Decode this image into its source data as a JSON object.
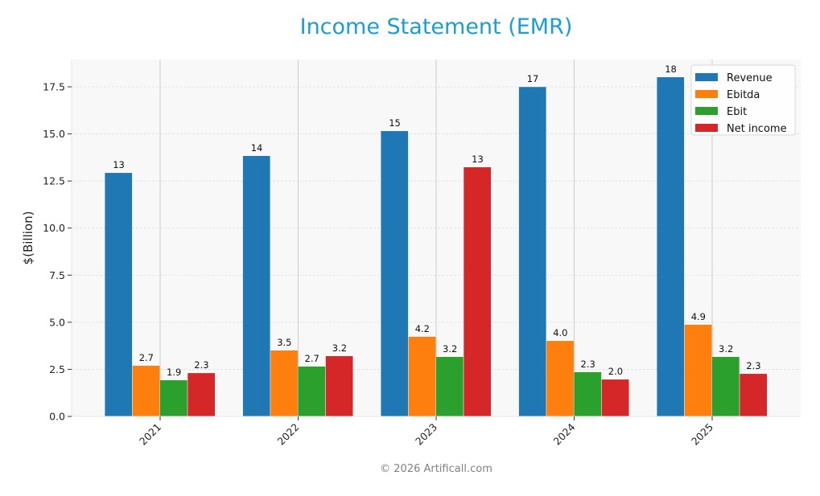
{
  "title": "Income Statement (EMR)",
  "footer": "© 2026 Artificall.com",
  "colors": {
    "revenue": "#1f77b4",
    "ebitda": "#ff7f0e",
    "ebit": "#2ca02c",
    "net_income": "#d62728",
    "title": "#1a9fd0",
    "plot_bg": "#f8f8f8"
  },
  "chart_data": {
    "type": "bar",
    "title": "Income Statement (EMR)",
    "xlabel": "",
    "ylabel": "$(Billion)",
    "ylim": [
      0,
      18.9
    ],
    "yticks": [
      0.0,
      2.5,
      5.0,
      7.5,
      10.0,
      12.5,
      15.0,
      17.5
    ],
    "ytick_labels": [
      "0.0",
      "2.5",
      "5.0",
      "7.5",
      "10.0",
      "12.5",
      "15.0",
      "17.5"
    ],
    "categories": [
      "2021",
      "2022",
      "2023",
      "2024",
      "2025"
    ],
    "grid": true,
    "legend_position": "upper right",
    "series": [
      {
        "name": "Revenue",
        "color": "#1f77b4",
        "values": [
          12.93,
          13.83,
          15.15,
          17.49,
          18.01
        ],
        "labels": [
          "13",
          "14",
          "15",
          "17",
          "18"
        ]
      },
      {
        "name": "Ebitda",
        "color": "#ff7f0e",
        "values": [
          2.69,
          3.5,
          4.23,
          4.01,
          4.87
        ],
        "labels": [
          "2.7",
          "3.5",
          "4.2",
          "4.0",
          "4.9"
        ]
      },
      {
        "name": "Ebit",
        "color": "#2ca02c",
        "values": [
          1.92,
          2.65,
          3.16,
          2.35,
          3.16
        ],
        "labels": [
          "1.9",
          "2.7",
          "3.2",
          "2.3",
          "3.2"
        ]
      },
      {
        "name": "Net income",
        "color": "#d62728",
        "values": [
          2.3,
          3.2,
          13.23,
          1.96,
          2.26
        ],
        "labels": [
          "2.3",
          "3.2",
          "13",
          "2.0",
          "2.3"
        ]
      }
    ]
  }
}
